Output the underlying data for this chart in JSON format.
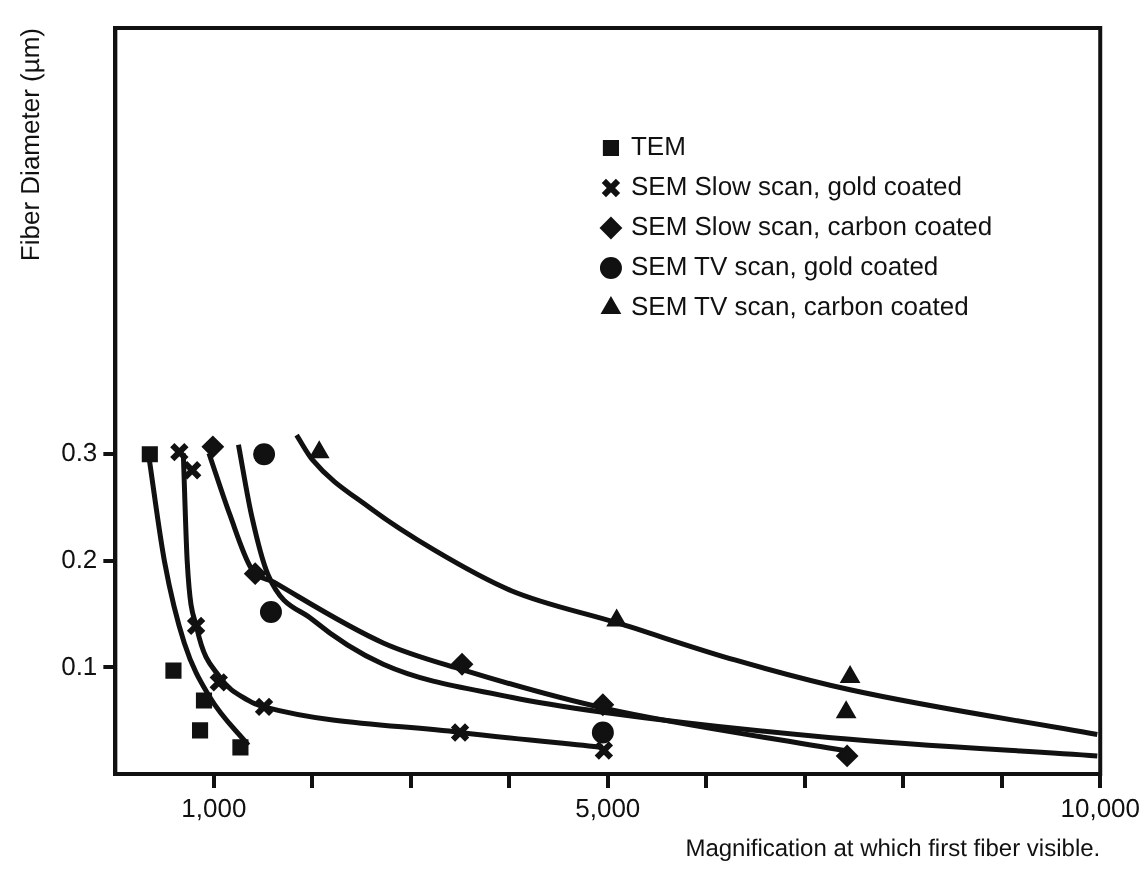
{
  "chart_data": {
    "type": "scatter",
    "xlabel": "Magnification at which first fiber visible.",
    "ylabel": "Fiber Diameter (µm)",
    "xlim": [
      0,
      10000
    ],
    "xticks": [
      {
        "value": 1000,
        "label": "1,000"
      },
      {
        "value": 2000,
        "label": null
      },
      {
        "value": 3000,
        "label": null
      },
      {
        "value": 4000,
        "label": null
      },
      {
        "value": 5000,
        "label": "5,000"
      },
      {
        "value": 6000,
        "label": null
      },
      {
        "value": 7000,
        "label": null
      },
      {
        "value": 8000,
        "label": null
      },
      {
        "value": 9000,
        "label": null
      },
      {
        "value": 10000,
        "label": "10,000"
      }
    ],
    "ylim": [
      0,
      0.7
    ],
    "yticks": [
      0.1,
      0.2,
      0.3
    ],
    "grid": false,
    "legend": "top right",
    "series": [
      {
        "name": "TEM",
        "type": "scatter",
        "marker": "square",
        "color": "#111111",
        "x": [
          350,
          590,
          900,
          860,
          1270
        ],
        "values": [
          0.3,
          0.097,
          0.069,
          0.041,
          0.025
        ]
      },
      {
        "name": "SEM Slow scan, gold coated",
        "type": "scatter",
        "marker": "cross",
        "color": "#111111",
        "x": [
          650,
          780,
          820,
          1050,
          1510,
          3500,
          4960
        ],
        "values": [
          0.302,
          0.285,
          0.139,
          0.086,
          0.063,
          0.039,
          0.022
        ]
      },
      {
        "name": "SEM Slow scan, carbon coated",
        "type": "scatter",
        "marker": "diamond",
        "color": "#111111",
        "x": [
          990,
          1420,
          3520,
          4950,
          7430
        ],
        "values": [
          0.307,
          0.188,
          0.103,
          0.065,
          0.017
        ]
      },
      {
        "name": "SEM TV scan, gold coated",
        "type": "scatter",
        "marker": "circle",
        "color": "#111111",
        "x": [
          1510,
          1580,
          4950
        ],
        "values": [
          0.3,
          0.152,
          0.039
        ]
      },
      {
        "name": "SEM TV scan, carbon coated",
        "type": "scatter",
        "marker": "triangle",
        "color": "#111111",
        "x": [
          2070,
          5090,
          7460,
          7420
        ],
        "values": [
          0.302,
          0.144,
          0.091,
          0.058
        ]
      },
      {
        "type": "line",
        "marker": "none",
        "color": "#111111",
        "x": [
          340,
          500,
          700,
          960,
          1350
        ],
        "values": [
          0.298,
          0.199,
          0.123,
          0.072,
          0.027
        ]
      },
      {
        "type": "line",
        "marker": "none",
        "color": "#111111",
        "x": [
          690,
          730,
          830,
          1060,
          1350,
          1510,
          3500,
          4950
        ],
        "values": [
          0.301,
          0.199,
          0.136,
          0.091,
          0.069,
          0.063,
          0.039,
          0.025
        ]
      },
      {
        "type": "line",
        "marker": "none",
        "color": "#111111",
        "x": [
          950,
          1160,
          1380,
          1610,
          2720,
          3520,
          4950,
          7400
        ],
        "values": [
          0.301,
          0.244,
          0.193,
          0.18,
          0.123,
          0.098,
          0.062,
          0.022
        ]
      },
      {
        "type": "line",
        "marker": "none",
        "color": "#111111",
        "x": [
          1250,
          1380,
          1550,
          2000,
          2720,
          4020,
          4950,
          7270,
          9970
        ],
        "values": [
          0.309,
          0.244,
          0.187,
          0.145,
          0.103,
          0.072,
          0.058,
          0.034,
          0.017
        ]
      },
      {
        "type": "line",
        "marker": "none",
        "color": "#111111",
        "x": [
          1840,
          2000,
          2580,
          3240,
          4020,
          5090,
          6290,
          7460,
          9970
        ],
        "values": [
          0.318,
          0.295,
          0.25,
          0.21,
          0.172,
          0.142,
          0.107,
          0.079,
          0.037
        ]
      }
    ]
  }
}
